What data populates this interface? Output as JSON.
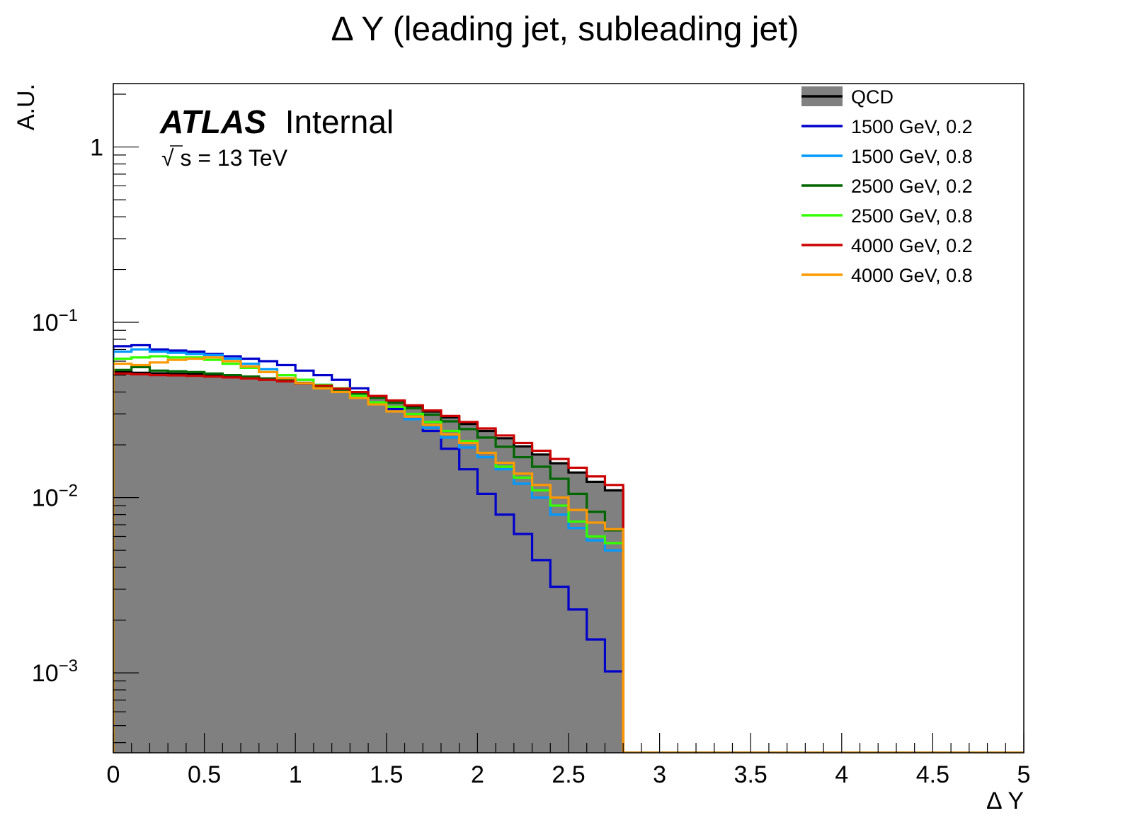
{
  "chart_data": {
    "type": "histogram-step",
    "title": "Δ Y (leading jet, subleading jet)",
    "xlabel": "Δ Y",
    "ylabel": "A.U.",
    "x_scale": "linear",
    "y_scale": "log",
    "xlim": [
      0,
      5
    ],
    "ylim": [
      0.00035,
      2.3
    ],
    "x_ticks": [
      0,
      0.5,
      1,
      1.5,
      2,
      2.5,
      3,
      3.5,
      4,
      4.5,
      5
    ],
    "x_tick_labels": [
      "0",
      "0.5",
      "1",
      "1.5",
      "2",
      "2.5",
      "3",
      "3.5",
      "4",
      "4.5",
      "5"
    ],
    "y_ticks": [
      {
        "value": 1,
        "base": "1",
        "exp": ""
      },
      {
        "value": 0.1,
        "base": "10",
        "exp": "−1"
      },
      {
        "value": 0.01,
        "base": "10",
        "exp": "−2"
      },
      {
        "value": 0.001,
        "base": "10",
        "exp": "−3"
      }
    ],
    "bin_width": 0.1,
    "bin_start": 0,
    "legend_position": "top-right",
    "annotation": {
      "atlas_bold": "ATLAS",
      "atlas_label": "Internal",
      "sqrt_symbol": "√",
      "energy_s": "s",
      "energy_rest": " = 13 TeV"
    },
    "series": [
      {
        "name": "QCD",
        "color": "#000000",
        "fill": "#808080",
        "filled": true,
        "values": [
          0.052,
          0.0515,
          0.0512,
          0.0508,
          0.0505,
          0.05,
          0.0495,
          0.0488,
          0.0478,
          0.0466,
          0.0452,
          0.0436,
          0.0418,
          0.0398,
          0.0377,
          0.0355,
          0.0333,
          0.031,
          0.0287,
          0.0263,
          0.024,
          0.0218,
          0.0196,
          0.0176,
          0.0157,
          0.0139,
          0.0123,
          0.011
        ]
      },
      {
        "name": "1500 GeV, 0.2",
        "color": "#0000cc",
        "filled": false,
        "values": [
          0.073,
          0.074,
          0.07,
          0.069,
          0.068,
          0.066,
          0.064,
          0.062,
          0.06,
          0.057,
          0.053,
          0.05,
          0.047,
          0.042,
          0.037,
          0.032,
          0.028,
          0.024,
          0.019,
          0.0145,
          0.0105,
          0.008,
          0.0062,
          0.0044,
          0.0031,
          0.0023,
          0.00155,
          0.00102
        ]
      },
      {
        "name": "1500 GeV, 0.8",
        "color": "#0099ff",
        "filled": false,
        "values": [
          0.068,
          0.07,
          0.068,
          0.067,
          0.066,
          0.065,
          0.062,
          0.058,
          0.054,
          0.05,
          0.047,
          0.044,
          0.04,
          0.037,
          0.034,
          0.031,
          0.028,
          0.025,
          0.022,
          0.0193,
          0.017,
          0.0145,
          0.012,
          0.01,
          0.008,
          0.0067,
          0.0057,
          0.005
        ]
      },
      {
        "name": "2500 GeV, 0.2",
        "color": "#006600",
        "filled": false,
        "values": [
          0.0535,
          0.0555,
          0.053,
          0.0525,
          0.052,
          0.051,
          0.05,
          0.049,
          0.0478,
          0.0465,
          0.045,
          0.0432,
          0.0413,
          0.0393,
          0.037,
          0.0347,
          0.0323,
          0.0297,
          0.0272,
          0.0246,
          0.022,
          0.0195,
          0.017,
          0.015,
          0.0128,
          0.0105,
          0.0083,
          0.0065
        ]
      },
      {
        "name": "2500 GeV, 0.8",
        "color": "#33ff00",
        "filled": false,
        "values": [
          0.062,
          0.063,
          0.064,
          0.063,
          0.063,
          0.061,
          0.058,
          0.055,
          0.052,
          0.05,
          0.047,
          0.044,
          0.042,
          0.038,
          0.035,
          0.033,
          0.03,
          0.027,
          0.024,
          0.021,
          0.018,
          0.015,
          0.013,
          0.011,
          0.009,
          0.0073,
          0.006,
          0.0055
        ]
      },
      {
        "name": "4000 GeV, 0.2",
        "color": "#cc0000",
        "filled": false,
        "values": [
          0.051,
          0.0505,
          0.05,
          0.0498,
          0.0495,
          0.049,
          0.0485,
          0.0478,
          0.047,
          0.046,
          0.0448,
          0.0435,
          0.0418,
          0.04,
          0.038,
          0.0358,
          0.0336,
          0.0314,
          0.0292,
          0.027,
          0.0248,
          0.0226,
          0.0205,
          0.0185,
          0.0166,
          0.0148,
          0.0132,
          0.0118
        ]
      },
      {
        "name": "4000 GeV, 0.8",
        "color": "#ff9900",
        "filled": false,
        "values": [
          0.058,
          0.057,
          0.059,
          0.061,
          0.062,
          0.063,
          0.06,
          0.056,
          0.052,
          0.048,
          0.045,
          0.042,
          0.04,
          0.037,
          0.034,
          0.031,
          0.029,
          0.026,
          0.023,
          0.0205,
          0.018,
          0.0158,
          0.0137,
          0.0118,
          0.01,
          0.0085,
          0.0072,
          0.0066
        ]
      }
    ]
  }
}
